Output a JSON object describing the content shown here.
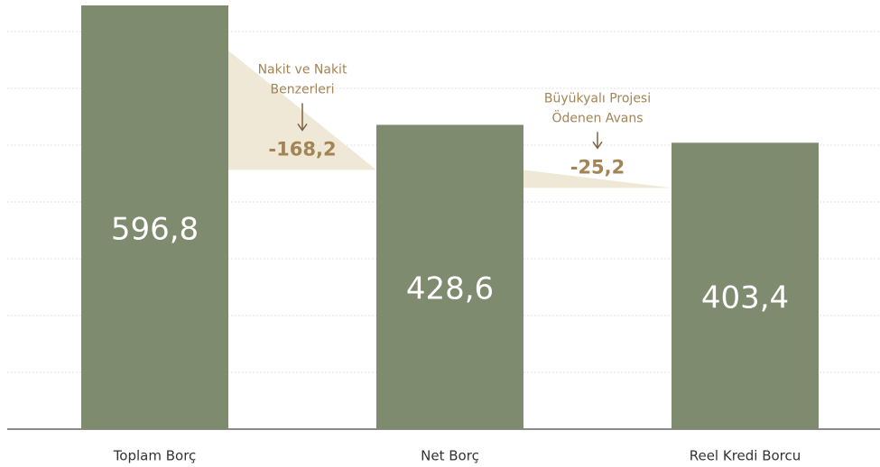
{
  "chart_data": {
    "type": "waterfall",
    "categories": [
      "Toplam Borç",
      "Net Borç",
      "Reel Kredi Borcu"
    ],
    "values": [
      596.8,
      428.6,
      403.4
    ],
    "value_labels": [
      "596,8",
      "428,6",
      "403,4"
    ],
    "color": "#7f8b6f",
    "changes": [
      {
        "value": -168.2,
        "label": "-168,2",
        "annotation": [
          "Nakit ve Nakit",
          "Benzerleri"
        ]
      },
      {
        "value": -25.2,
        "label": "-25,2",
        "annotation": [
          "Büyükyalı Projesi",
          "Ödenen Avans"
        ]
      }
    ],
    "change_color": "#efe8d6",
    "ylim": [
      0,
      600
    ],
    "yticks": [
      0,
      80,
      160,
      240,
      320,
      400,
      480,
      560
    ],
    "grid": true
  }
}
